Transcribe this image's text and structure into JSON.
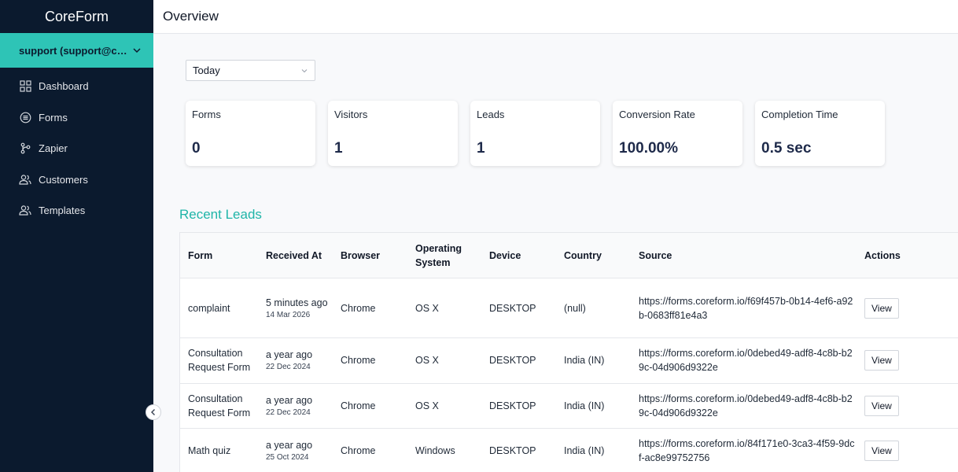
{
  "app": {
    "brand": "CoreForm",
    "page_title": "Overview"
  },
  "sidebar": {
    "account_label": "support (support@core…",
    "items": [
      {
        "label": "Dashboard",
        "icon": "dashboard-icon"
      },
      {
        "label": "Forms",
        "icon": "forms-icon"
      },
      {
        "label": "Zapier",
        "icon": "zapier-icon"
      },
      {
        "label": "Customers",
        "icon": "customers-icon"
      },
      {
        "label": "Templates",
        "icon": "templates-icon"
      }
    ]
  },
  "filter": {
    "selected": "Today"
  },
  "stats": [
    {
      "label": "Forms",
      "value": "0"
    },
    {
      "label": "Visitors",
      "value": "1"
    },
    {
      "label": "Leads",
      "value": "1"
    },
    {
      "label": "Conversion Rate",
      "value": "100.00%"
    },
    {
      "label": "Completion Time",
      "value": "0.5 sec"
    }
  ],
  "recent_leads": {
    "title": "Recent Leads",
    "columns": {
      "form": "Form",
      "received_at": "Received At",
      "browser": "Browser",
      "os_line1": "Operating",
      "os_line2": "System",
      "device": "Device",
      "country": "Country",
      "source": "Source",
      "actions": "Actions"
    },
    "rows": [
      {
        "form": "complaint",
        "received": "5 minutes ago",
        "date": "14 Mar 2026",
        "browser": "Chrome",
        "os": "OS X",
        "device": "DESKTOP",
        "country": "(null)",
        "source": "https://forms.coreform.io/f69f457b-0b14-4ef6-a92b-0683ff81e4a3",
        "action": "View"
      },
      {
        "form": "Consultation Request Form",
        "received": "a year ago",
        "date": "22 Dec 2024",
        "browser": "Chrome",
        "os": "OS X",
        "device": "DESKTOP",
        "country": "India (IN)",
        "source": "https://forms.coreform.io/0debed49-adf8-4c8b-b29c-04d906d9322e",
        "action": "View"
      },
      {
        "form": "Consultation Request Form",
        "received": "a year ago",
        "date": "22 Dec 2024",
        "browser": "Chrome",
        "os": "OS X",
        "device": "DESKTOP",
        "country": "India (IN)",
        "source": "https://forms.coreform.io/0debed49-adf8-4c8b-b29c-04d906d9322e",
        "action": "View"
      },
      {
        "form": "Math quiz",
        "received": "a year ago",
        "date": "25 Oct 2024",
        "browser": "Chrome",
        "os": "Windows",
        "device": "DESKTOP",
        "country": "India (IN)",
        "source": "https://forms.coreform.io/84f171e0-3ca3-4f59-9dcf-ac8e99752756",
        "action": "View"
      }
    ]
  },
  "colors": {
    "sidebar_bg": "#0b1a2e",
    "accent": "#2ec4b6",
    "title_teal": "#1fb5a8"
  }
}
